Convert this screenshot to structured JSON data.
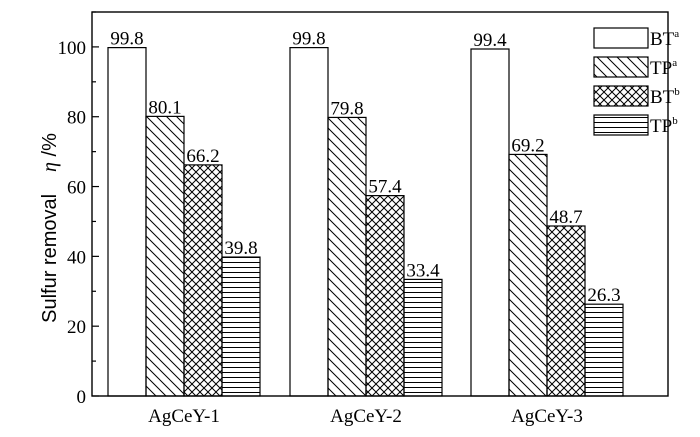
{
  "chart_data": {
    "type": "bar",
    "categories": [
      "AgCeY-1",
      "AgCeY-2",
      "AgCeY-3"
    ],
    "series": [
      {
        "name": "BT",
        "sup": "a",
        "values": [
          99.8,
          99.8,
          99.4
        ],
        "pattern": "none"
      },
      {
        "name": "TP",
        "sup": "a",
        "values": [
          80.1,
          79.8,
          69.2
        ],
        "pattern": "diagonal"
      },
      {
        "name": "BT",
        "sup": "b",
        "values": [
          66.2,
          57.4,
          48.7
        ],
        "pattern": "crosshatch"
      },
      {
        "name": "TP",
        "sup": "b",
        "values": [
          39.8,
          33.4,
          26.3
        ],
        "pattern": "horizontal"
      }
    ],
    "data_labels": [
      [
        "99.8",
        "80.1",
        "66.2",
        "39.8"
      ],
      [
        "99.8",
        "79.8",
        "57.4",
        "33.4"
      ],
      [
        "99.4",
        "69.2",
        "48.7",
        "26.3"
      ]
    ],
    "title": "",
    "xlabel": "",
    "ylabel": "Sulfur removal",
    "ylabel_symbol": "η",
    "ylabel_unit": " /%",
    "ylim": [
      0,
      110
    ],
    "yticks": [
      0,
      20,
      40,
      60,
      80,
      100
    ],
    "grid": false,
    "legend_position": "top-right"
  }
}
